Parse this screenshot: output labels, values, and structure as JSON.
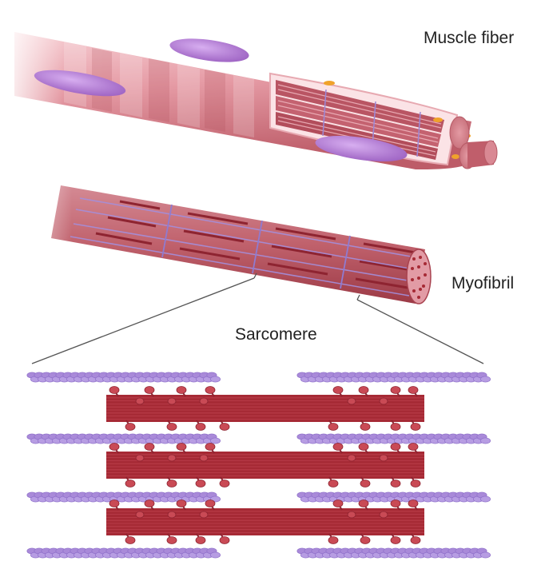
{
  "labels": {
    "muscle_fiber": "Muscle fiber",
    "myofibril": "Myofibril",
    "sarcomere": "Sarcomere"
  },
  "colors": {
    "fiber_light": "#f6c9cf",
    "fiber_mid": "#d57b86",
    "fiber_dark": "#b5505c",
    "nucleus": "#a86fc6",
    "myofibril_body": "#b84c58",
    "thick_filament": "#a62a35",
    "myosin_head": "#c94a55",
    "thin_filament": "#a98ad9",
    "z_line": "#8f7bd1",
    "calcium": "#f0a22b"
  },
  "sarcomere": {
    "thick_filament_count": 3,
    "thin_filament_rows": 4
  }
}
